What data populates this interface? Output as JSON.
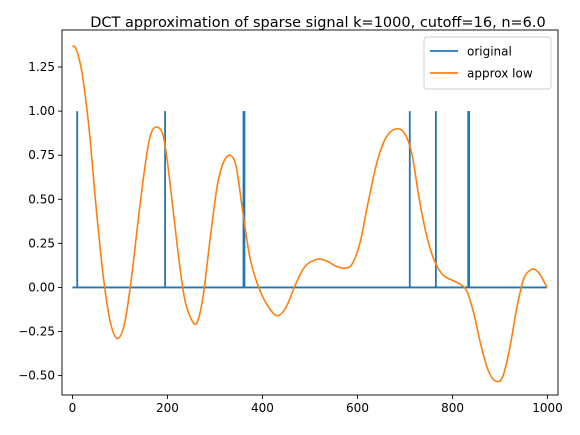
{
  "chart_data": {
    "type": "line",
    "title": "DCT approximation of sparse signal k=1000, cutoff=16, n=6.0",
    "xlabel": "",
    "ylabel": "",
    "xlim": [
      -22,
      1022
    ],
    "ylim": [
      -0.61,
      1.46
    ],
    "grid": false,
    "legend_position": "top-right",
    "x_ticks": [
      0,
      200,
      400,
      600,
      800,
      1000
    ],
    "x_tick_labels": [
      "0",
      "200",
      "400",
      "600",
      "800",
      "1000"
    ],
    "y_ticks": [
      -0.5,
      -0.25,
      0.0,
      0.25,
      0.5,
      0.75,
      1.0,
      1.25
    ],
    "y_tick_labels": [
      "−0.50",
      "−0.25",
      "0.00",
      "0.25",
      "0.50",
      "0.75",
      "1.00",
      "1.25"
    ],
    "series": [
      {
        "name": "original",
        "color": "#1f77b4",
        "baseline": [
          [
            0,
            0
          ],
          [
            999,
            0
          ]
        ],
        "spikes": [
          {
            "x": 10,
            "y": 1.0
          },
          {
            "x": 195,
            "y": 1.0
          },
          {
            "x": 360,
            "y": 1.0
          },
          {
            "x": 362,
            "y": 1.0
          },
          {
            "x": 710,
            "y": 1.0
          },
          {
            "x": 765,
            "y": 1.0
          },
          {
            "x": 833,
            "y": 1.0
          },
          {
            "x": 835,
            "y": 1.0
          }
        ]
      },
      {
        "name": "approx low",
        "color": "#ff7f0e",
        "points": [
          [
            0,
            1.37
          ],
          [
            8,
            1.35
          ],
          [
            20,
            1.22
          ],
          [
            35,
            0.9
          ],
          [
            50,
            0.45
          ],
          [
            65,
            0.06
          ],
          [
            80,
            -0.2
          ],
          [
            95,
            -0.29
          ],
          [
            110,
            -0.2
          ],
          [
            125,
            0.07
          ],
          [
            140,
            0.42
          ],
          [
            155,
            0.73
          ],
          [
            165,
            0.87
          ],
          [
            178,
            0.91
          ],
          [
            192,
            0.85
          ],
          [
            205,
            0.6
          ],
          [
            220,
            0.25
          ],
          [
            235,
            -0.05
          ],
          [
            250,
            -0.18
          ],
          [
            262,
            -0.2
          ],
          [
            275,
            -0.05
          ],
          [
            290,
            0.28
          ],
          [
            305,
            0.58
          ],
          [
            318,
            0.71
          ],
          [
            332,
            0.75
          ],
          [
            345,
            0.68
          ],
          [
            360,
            0.4
          ],
          [
            375,
            0.15
          ],
          [
            395,
            -0.02
          ],
          [
            415,
            -0.12
          ],
          [
            432,
            -0.16
          ],
          [
            450,
            -0.11
          ],
          [
            470,
            0.02
          ],
          [
            490,
            0.12
          ],
          [
            515,
            0.16
          ],
          [
            535,
            0.15
          ],
          [
            555,
            0.12
          ],
          [
            572,
            0.11
          ],
          [
            588,
            0.13
          ],
          [
            605,
            0.25
          ],
          [
            620,
            0.45
          ],
          [
            640,
            0.7
          ],
          [
            660,
            0.85
          ],
          [
            682,
            0.9
          ],
          [
            700,
            0.87
          ],
          [
            715,
            0.75
          ],
          [
            730,
            0.5
          ],
          [
            745,
            0.3
          ],
          [
            762,
            0.15
          ],
          [
            780,
            0.07
          ],
          [
            800,
            0.04
          ],
          [
            815,
            0.02
          ],
          [
            830,
            -0.02
          ],
          [
            845,
            -0.15
          ],
          [
            860,
            -0.33
          ],
          [
            875,
            -0.47
          ],
          [
            890,
            -0.53
          ],
          [
            905,
            -0.51
          ],
          [
            920,
            -0.35
          ],
          [
            935,
            -0.12
          ],
          [
            950,
            0.05
          ],
          [
            965,
            0.1
          ],
          [
            975,
            0.1
          ],
          [
            985,
            0.07
          ],
          [
            993,
            0.03
          ],
          [
            999,
            0.0
          ]
        ]
      }
    ]
  }
}
